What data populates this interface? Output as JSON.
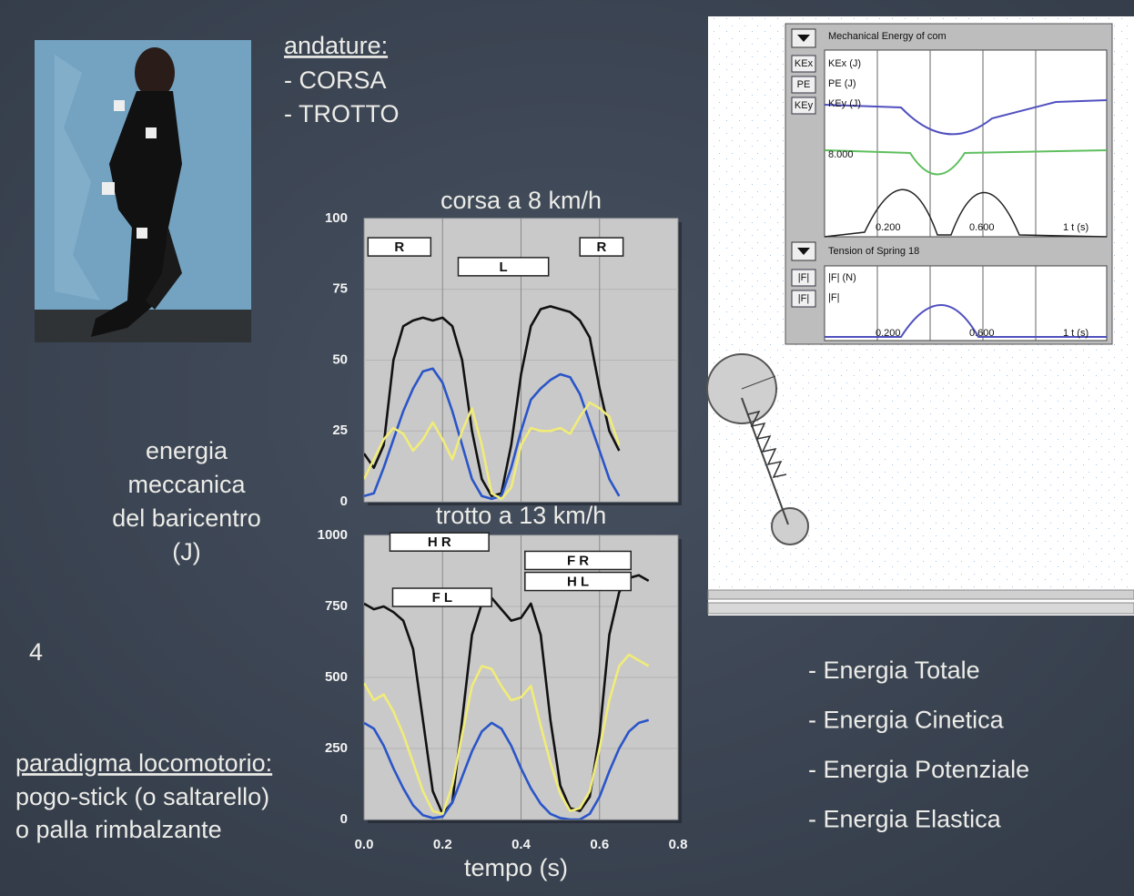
{
  "slide_number": "4",
  "gaits": {
    "heading": "andature:",
    "items": [
      "- CORSA",
      "- TROTTO"
    ]
  },
  "y_label": [
    "energia",
    "meccanica",
    "del baricentro",
    "(J)"
  ],
  "paradigm": {
    "heading": "paradigma locomotorio:",
    "lines": [
      "pogo-stick (o saltarello)",
      "o palla rimbalzante"
    ]
  },
  "energy_list": [
    "- Energia Totale",
    "- Energia Cinetica",
    "- Energia Potenziale",
    "- Energia Elastica"
  ],
  "simulation": {
    "panel1": {
      "title": "Mechanical Energy of com",
      "buttons": [
        "KEx",
        "PE",
        "KEy"
      ],
      "legend": [
        "KEx (J)",
        "PE (J)",
        "KEy (J)"
      ],
      "value_label": "8.000",
      "axis_labels": [
        "0.200",
        "0.600",
        "1 t (s)"
      ]
    },
    "panel2": {
      "title": "Tension of Spring 18",
      "buttons": [
        "|F|",
        "|F|"
      ],
      "legend": [
        "|F| (N)",
        "|F|"
      ],
      "axis_labels": [
        "0.200",
        "0.600",
        "1 t (s)"
      ]
    }
  },
  "chart_data": [
    {
      "type": "line",
      "title": "corsa a 8 km/h",
      "xlim": [
        0,
        0.8
      ],
      "ylim": [
        0,
        100
      ],
      "yticks": [
        0,
        25,
        50,
        75,
        100
      ],
      "xticks": [
        0.2,
        0.4,
        0.6
      ],
      "xtick_labels": false,
      "grid": true,
      "x": [
        0,
        0.025,
        0.05,
        0.075,
        0.1,
        0.125,
        0.15,
        0.175,
        0.2,
        0.225,
        0.25,
        0.275,
        0.3,
        0.325,
        0.35,
        0.375,
        0.4,
        0.425,
        0.45,
        0.475,
        0.5,
        0.525,
        0.55,
        0.575,
        0.6,
        0.625,
        0.65
      ],
      "series": [
        {
          "color": "#111111",
          "values": [
            17,
            12,
            20,
            50,
            62,
            64,
            65,
            64,
            65,
            62,
            50,
            25,
            8,
            2,
            3,
            20,
            45,
            62,
            68,
            69,
            68,
            67,
            64,
            58,
            40,
            25,
            18
          ]
        },
        {
          "color": "#2a55c8",
          "values": [
            2,
            3,
            12,
            22,
            32,
            40,
            46,
            47,
            42,
            32,
            20,
            8,
            2,
            1,
            2,
            12,
            25,
            36,
            40,
            43,
            45,
            44,
            38,
            28,
            18,
            8,
            2
          ]
        },
        {
          "color": "#f1ec78",
          "values": [
            8,
            15,
            22,
            26,
            24,
            18,
            22,
            28,
            22,
            15,
            25,
            33,
            20,
            3,
            1,
            5,
            20,
            26,
            25,
            25,
            26,
            24,
            30,
            35,
            33,
            30,
            20
          ]
        }
      ],
      "annotations": [
        {
          "text": "R",
          "x": [
            0.01,
            0.17
          ],
          "y": 90
        },
        {
          "text": "L",
          "x": [
            0.24,
            0.47
          ],
          "y": 83
        },
        {
          "text": "R",
          "x": [
            0.55,
            0.66
          ],
          "y": 90
        }
      ]
    },
    {
      "type": "line",
      "title": "trotto a 13 km/h",
      "xlabel": "tempo (s)",
      "xlim": [
        0,
        0.8
      ],
      "ylim": [
        0,
        1000
      ],
      "yticks": [
        0,
        250,
        500,
        750,
        1000
      ],
      "xticks": [
        {
          "value": 0,
          "label": "0.0"
        },
        {
          "value": 0.2,
          "label": "0.2"
        },
        {
          "value": 0.4,
          "label": "0.4"
        },
        {
          "value": 0.6,
          "label": "0.6"
        },
        {
          "value": 0.8,
          "label": "0.8"
        }
      ],
      "grid": true,
      "x": [
        0,
        0.025,
        0.05,
        0.075,
        0.1,
        0.125,
        0.15,
        0.175,
        0.2,
        0.225,
        0.25,
        0.275,
        0.3,
        0.325,
        0.35,
        0.375,
        0.4,
        0.425,
        0.45,
        0.475,
        0.5,
        0.525,
        0.55,
        0.575,
        0.6,
        0.625,
        0.65,
        0.675,
        0.7,
        0.725
      ],
      "series": [
        {
          "color": "#111111",
          "values": [
            760,
            740,
            750,
            730,
            700,
            600,
            350,
            100,
            20,
            60,
            350,
            650,
            760,
            780,
            740,
            700,
            710,
            760,
            650,
            350,
            120,
            40,
            30,
            80,
            300,
            650,
            800,
            850,
            860,
            840
          ]
        },
        {
          "color": "#2a55c8",
          "values": [
            340,
            320,
            260,
            180,
            110,
            50,
            15,
            5,
            10,
            60,
            150,
            240,
            310,
            340,
            320,
            260,
            180,
            110,
            55,
            20,
            5,
            0,
            0,
            20,
            80,
            170,
            250,
            310,
            340,
            350
          ]
        },
        {
          "color": "#f1ec78",
          "values": [
            480,
            420,
            440,
            380,
            300,
            200,
            100,
            30,
            20,
            120,
            300,
            470,
            540,
            530,
            470,
            420,
            430,
            470,
            330,
            200,
            90,
            30,
            40,
            100,
            250,
            420,
            540,
            580,
            560,
            540
          ]
        }
      ],
      "annotations": [
        {
          "text": "H R",
          "x": [
            0.066,
            0.318
          ],
          "y": 977
        },
        {
          "text": "F L",
          "x": [
            0.073,
            0.325
          ],
          "y": 782
        },
        {
          "text": "F R",
          "x": [
            0.41,
            0.68
          ],
          "y": 912
        },
        {
          "text": "H L",
          "x": [
            0.41,
            0.68
          ],
          "y": 838
        }
      ]
    }
  ]
}
